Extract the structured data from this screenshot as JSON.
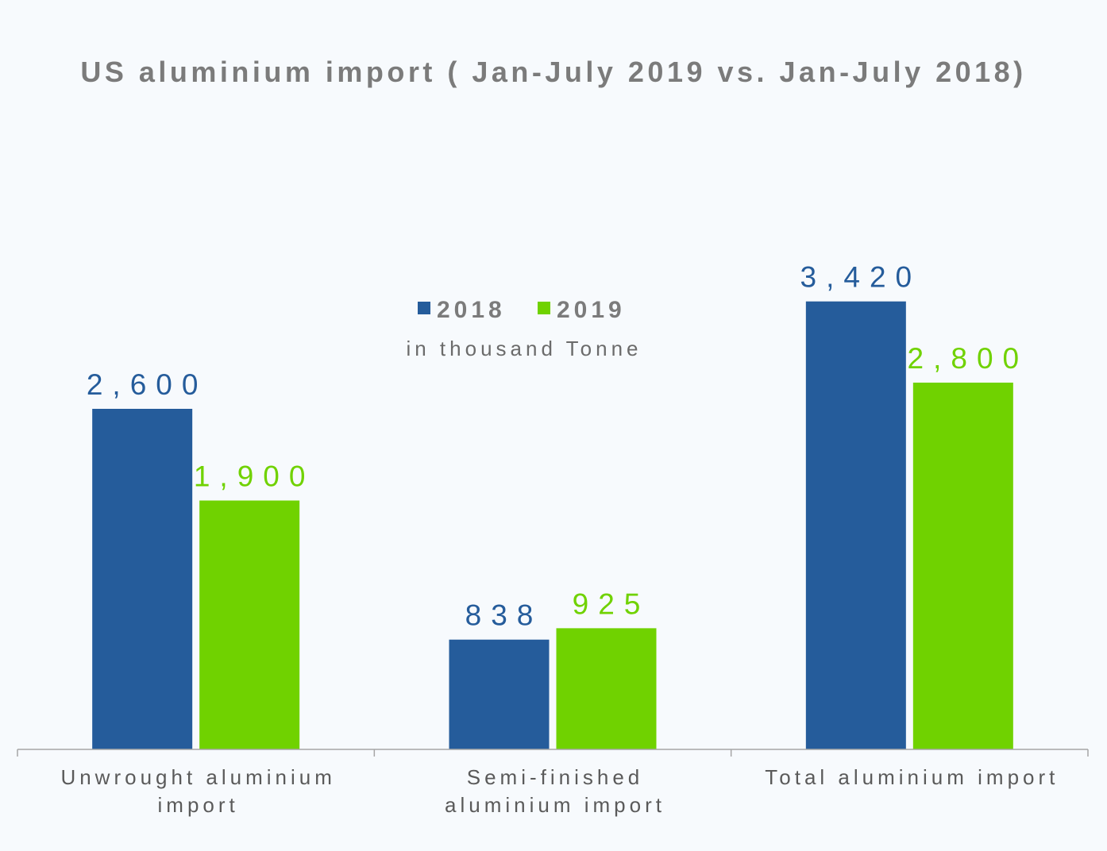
{
  "chart_data": {
    "type": "bar",
    "title": "US aluminium import ( Jan-July 2019 vs. Jan-July 2018)",
    "subtitle": "in thousand Tonne",
    "categories": [
      [
        "Unwrought aluminium",
        "import"
      ],
      [
        "Semi-finished",
        "aluminium import"
      ],
      [
        "Total aluminium import"
      ]
    ],
    "series": [
      {
        "name": "2018",
        "color": "#255c9b",
        "values": [
          2600,
          838,
          3420
        ],
        "labels": [
          "2,600",
          "838",
          "3,420"
        ]
      },
      {
        "name": "2019",
        "color": "#70d200",
        "values": [
          1900,
          925,
          2800
        ],
        "labels": [
          "1,900",
          "925",
          "2,800"
        ]
      }
    ],
    "ylim": [
      0,
      4000
    ],
    "grid": false,
    "legend": "center-top",
    "axis_color": "#a6a6a6"
  }
}
